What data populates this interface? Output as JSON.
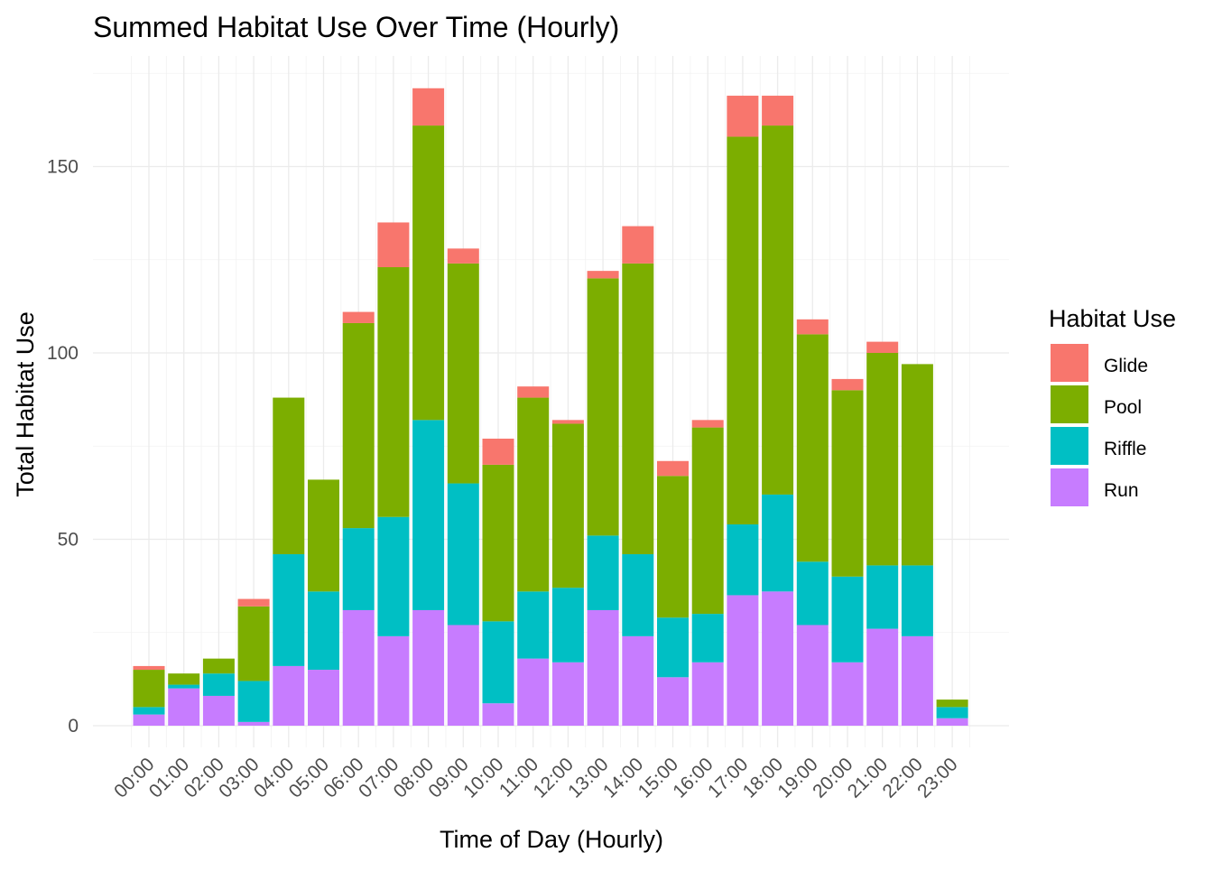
{
  "chart_data": {
    "type": "bar",
    "stacked": true,
    "title": "Summed Habitat Use Over Time (Hourly)",
    "xlabel": "Time of Day (Hourly)",
    "ylabel": "Total Habitat Use",
    "ylim": [
      0,
      175
    ],
    "yticks": [
      0,
      50,
      100,
      150
    ],
    "grid": true,
    "legend": {
      "title": "Habitat Use",
      "position": "right"
    },
    "categories": [
      "00:00",
      "01:00",
      "02:00",
      "03:00",
      "04:00",
      "05:00",
      "06:00",
      "07:00",
      "08:00",
      "09:00",
      "10:00",
      "11:00",
      "12:00",
      "13:00",
      "14:00",
      "15:00",
      "16:00",
      "17:00",
      "18:00",
      "19:00",
      "20:00",
      "21:00",
      "22:00",
      "23:00"
    ],
    "series": [
      {
        "name": "Run",
        "color": "#C77CFF",
        "values": [
          3,
          10,
          8,
          1,
          16,
          15,
          31,
          24,
          31,
          27,
          6,
          18,
          17,
          31,
          24,
          13,
          17,
          35,
          36,
          27,
          17,
          26,
          24,
          2
        ]
      },
      {
        "name": "Riffle",
        "color": "#00BFC4",
        "values": [
          2,
          1,
          6,
          11,
          30,
          21,
          22,
          32,
          51,
          38,
          22,
          18,
          20,
          20,
          22,
          16,
          13,
          19,
          26,
          17,
          23,
          17,
          19,
          3
        ]
      },
      {
        "name": "Pool",
        "color": "#7CAE00",
        "values": [
          10,
          3,
          4,
          20,
          42,
          30,
          55,
          67,
          79,
          59,
          42,
          52,
          44,
          69,
          78,
          38,
          50,
          104,
          99,
          61,
          50,
          57,
          54,
          2
        ]
      },
      {
        "name": "Glide",
        "color": "#F8766D",
        "values": [
          1,
          0,
          0,
          2,
          0,
          0,
          3,
          12,
          10,
          4,
          7,
          3,
          1,
          2,
          10,
          4,
          2,
          11,
          8,
          4,
          3,
          3,
          0,
          0
        ]
      }
    ],
    "legend_order": [
      "Glide",
      "Pool",
      "Riffle",
      "Run"
    ]
  }
}
